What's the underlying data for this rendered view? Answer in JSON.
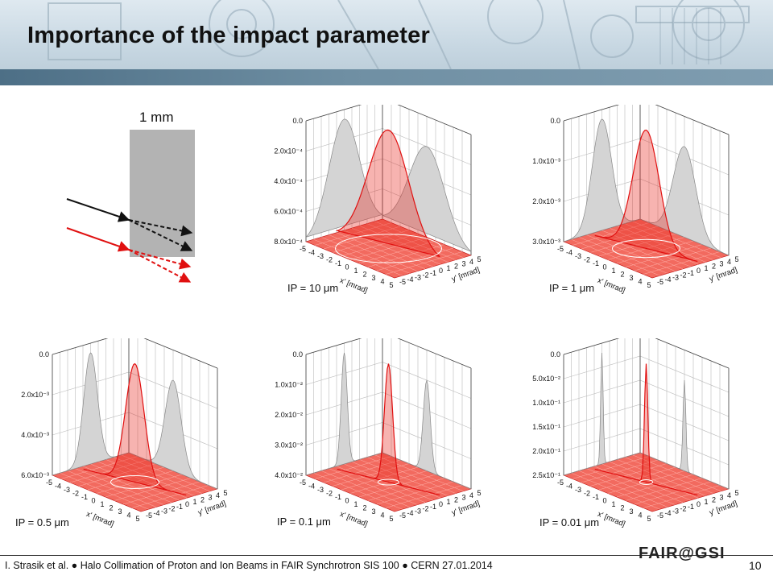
{
  "title": "Importance of the impact parameter",
  "diagram": {
    "scale_label": "1 mm",
    "colors": {
      "block": "#b3b3b3",
      "proton_black": "#111111",
      "proton_red": "#e01010"
    }
  },
  "panels": [
    {
      "label": "IP = 10 μm",
      "z_ticks": [
        "8.0x10⁻⁴",
        "6.0x10⁻⁴",
        "4.0x10⁻⁴",
        "2.0x10⁻⁴",
        "0.0"
      ]
    },
    {
      "label": "IP = 1 μm",
      "z_ticks": [
        "3.0x10⁻³",
        "2.0x10⁻³",
        "1.0x10⁻³",
        "0.0"
      ]
    },
    {
      "label": "IP = 0.5 μm",
      "z_ticks": [
        "6.0x10⁻³",
        "4.0x10⁻³",
        "2.0x10⁻³",
        "0.0"
      ]
    },
    {
      "label": "IP = 0.1 μm",
      "z_ticks": [
        "4.0x10⁻²",
        "3.0x10⁻²",
        "2.0x10⁻²",
        "1.0x10⁻²",
        "0.0"
      ]
    },
    {
      "label": "IP = 0.01 μm",
      "z_ticks": [
        "2.5x10⁻¹",
        "2.0x10⁻¹",
        "1.5x10⁻¹",
        "1.0x10⁻¹",
        "5.0x10⁻²",
        "0.0"
      ]
    }
  ],
  "axes": {
    "x_label": "x' [mrad]",
    "y_label": "y' [mrad]",
    "x_ticks": [
      "-5",
      "-4",
      "-3",
      "-2",
      "-1",
      "0",
      "1",
      "2",
      "3",
      "4",
      "5"
    ],
    "y_ticks": [
      "-5",
      "-4",
      "-3",
      "-2",
      "-1",
      "0",
      "1",
      "2",
      "3",
      "4",
      "5"
    ]
  },
  "footer": {
    "text": "I. Strasik et al.  ●  Halo Collimation of Proton and Ion Beams in FAIR Synchrotron SIS 100  ●  CERN 27.01.2014",
    "logo": "FAIR@GSI",
    "page": "10"
  },
  "colors": {
    "title": "#111111",
    "band": "#5a7a90",
    "surface": "#e8261c",
    "shadow": "#8a8a8a"
  }
}
